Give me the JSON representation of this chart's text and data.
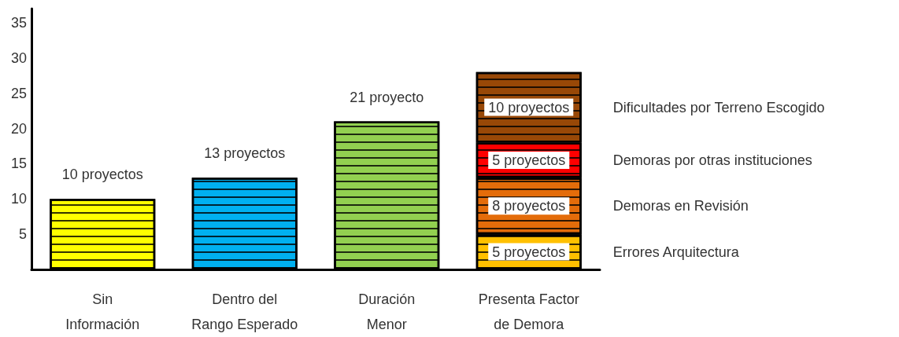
{
  "chart_data": {
    "type": "bar",
    "stacked": true,
    "categories": [
      "Sin Información",
      "Dentro del Rango Esperado",
      "Duración Menor",
      "Presenta Factor de Demora"
    ],
    "series": [
      {
        "values": [
          10,
          13,
          21,
          null
        ],
        "colors": [
          "#ffff00",
          "#00b0f0",
          "#92d050",
          null
        ],
        "value_labels": [
          "10 proyectos",
          "13 proyectos",
          "21 proyecto",
          null
        ]
      },
      {
        "name": "Errores Arquitectura",
        "color": "#ffc000",
        "values": [
          null,
          null,
          null,
          5
        ],
        "value_labels": [
          null,
          null,
          null,
          "5 proyectos"
        ]
      },
      {
        "name": "Demoras en Revisión",
        "color": "#e46c0a",
        "values": [
          null,
          null,
          null,
          8
        ],
        "value_labels": [
          null,
          null,
          null,
          "8 proyectos"
        ]
      },
      {
        "name": "Demoras por otras instituciones",
        "color": "#ff0000",
        "values": [
          null,
          null,
          null,
          5
        ],
        "value_labels": [
          null,
          null,
          null,
          "5 proyectos"
        ]
      },
      {
        "name": "Dificultades por Terreno Escogido",
        "color": "#984807",
        "values": [
          null,
          null,
          null,
          10
        ],
        "value_labels": [
          null,
          null,
          null,
          "10 proyectos"
        ]
      }
    ],
    "ylim": [
      0,
      37
    ],
    "yticks": [
      5,
      10,
      15,
      20,
      25,
      30,
      35
    ],
    "grid": false,
    "legend": false
  }
}
